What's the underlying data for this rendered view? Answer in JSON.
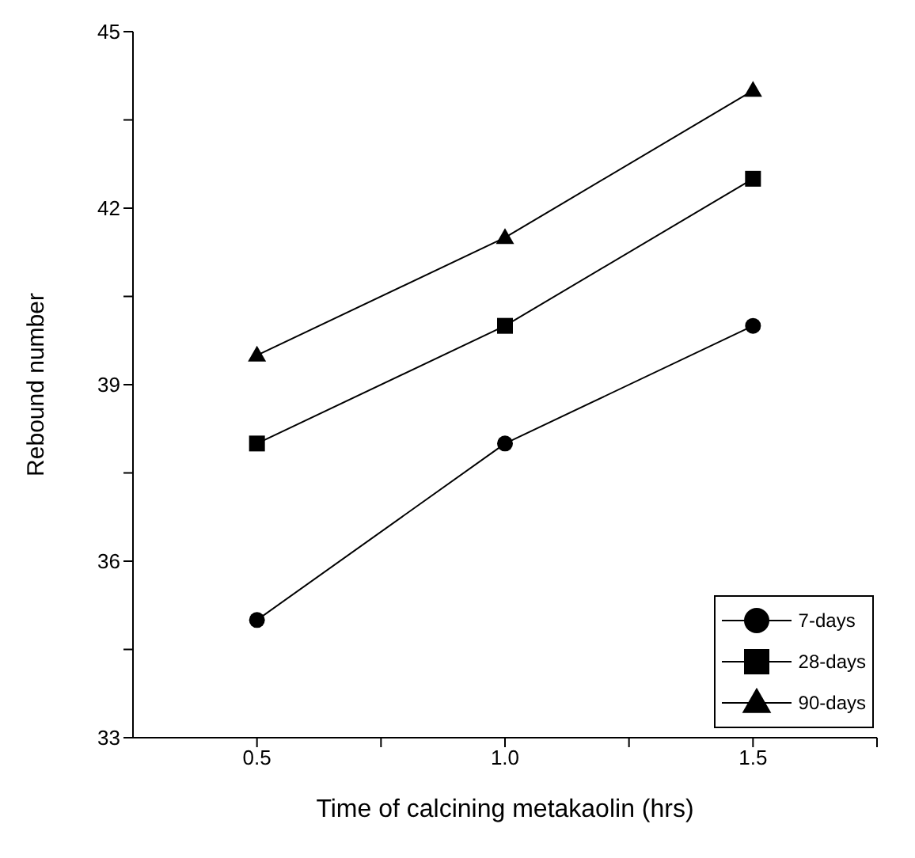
{
  "chart_data": {
    "type": "line",
    "xlabel": "Time of calcining metakaolin (hrs)",
    "ylabel": "Rebound number",
    "x": [
      0.5,
      1.0,
      1.5
    ],
    "series": [
      {
        "name": "7-days",
        "color": "#000000",
        "marker": "circle",
        "values": [
          35,
          38,
          40
        ]
      },
      {
        "name": "28-days",
        "color": "#000000",
        "marker": "square",
        "values": [
          38,
          40,
          42.5
        ]
      },
      {
        "name": "90-days",
        "color": "#000000",
        "marker": "triangle",
        "values": [
          39.5,
          41.5,
          44
        ]
      }
    ],
    "xlim": [
      0.25,
      1.75
    ],
    "xticks": [
      {
        "value": 0.5,
        "label": "0.5"
      },
      {
        "value": 0.75,
        "label": null
      },
      {
        "value": 1,
        "label": "1.0"
      },
      {
        "value": 1.25,
        "label": null
      },
      {
        "value": 1.5,
        "label": "1.5"
      },
      {
        "value": 1.75,
        "label": null
      }
    ],
    "ylim": [
      33,
      45
    ],
    "yticks": [
      33,
      {
        "value": 34.5,
        "label": null
      },
      36,
      {
        "value": 37.5,
        "label": null
      },
      39,
      {
        "value": 40.5,
        "label": null
      },
      42,
      {
        "value": 43.5,
        "label": null
      },
      45
    ],
    "grid": false,
    "legend": "bottom right",
    "line_style": "solid"
  }
}
